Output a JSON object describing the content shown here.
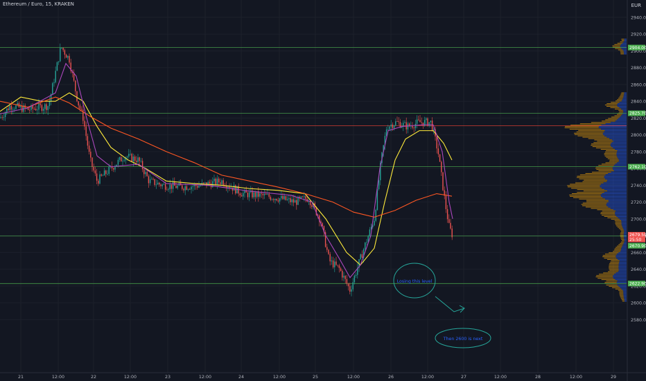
{
  "header": {
    "symbol": "Ethereum / Euro, 15, KRAKEN",
    "currency": "EUR"
  },
  "y_axis": {
    "ticks": [
      "2940.00",
      "2920.00",
      "2900.00",
      "2880.00",
      "2860.00",
      "2840.00",
      "2820.00",
      "2800.00",
      "2780.00",
      "2760.00",
      "2740.00",
      "2720.00",
      "2700.00",
      "2680.00",
      "2660.00",
      "2640.00",
      "2620.00",
      "2600.00",
      "2580.00"
    ],
    "tick_values": [
      2940,
      2920,
      2900,
      2880,
      2860,
      2840,
      2820,
      2800,
      2780,
      2760,
      2740,
      2720,
      2700,
      2680,
      2660,
      2640,
      2620,
      2600,
      2580
    ]
  },
  "x_axis": {
    "ticks": [
      "21",
      "12:00",
      "22",
      "12:00",
      "23",
      "12:00",
      "24",
      "12:00",
      "25",
      "12:00",
      "26",
      "12:00",
      "27",
      "12:00",
      "28",
      "12:00",
      "29"
    ]
  },
  "levels": [
    {
      "value": 2904.0,
      "label": "2904.00",
      "color": "#4caf50"
    },
    {
      "value": 2825.7,
      "label": "2825.70",
      "color": "#4caf50"
    },
    {
      "value": 2762.1,
      "label": "2762.10",
      "color": "#4caf50"
    },
    {
      "value": 2679.5,
      "label": "2679.50",
      "color": "#4caf50"
    },
    {
      "value": 2622.9,
      "label": "2622.90",
      "color": "#4caf50"
    },
    {
      "value": 2811.0,
      "label": "",
      "color": "#f44336"
    }
  ],
  "price_badges": [
    {
      "label": "2679.50",
      "color": "#ef5350"
    },
    {
      "label": "25:50",
      "color": "#ef5350"
    },
    {
      "label": "2670.90",
      "color": "#4caf50"
    }
  ],
  "annotations": [
    {
      "text": "Losing this level",
      "color": "#2962ff"
    },
    {
      "text": "Then 2600 is next",
      "color": "#2962ff"
    }
  ],
  "colors": {
    "bg": "#131722",
    "up": "#26a69a",
    "down": "#ef5350",
    "ma_yellow": "#ffeb3b",
    "ma_orange": "#ff5722",
    "ma_purple": "#ab47bc",
    "vp_blue": "#2962ff",
    "vp_orange": "#f0a30a"
  }
}
